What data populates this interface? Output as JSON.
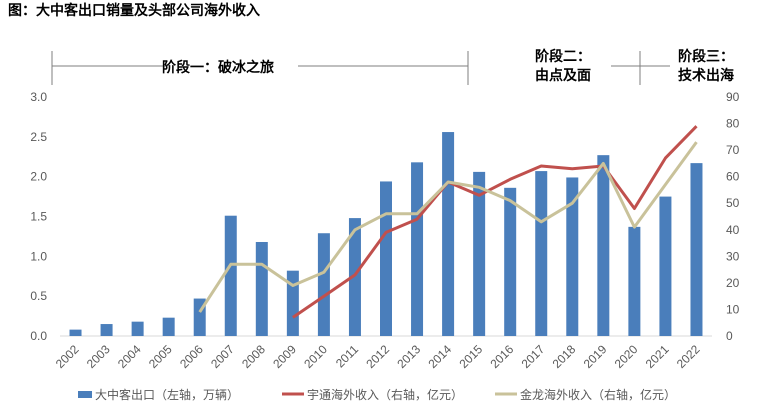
{
  "chart_data": {
    "type": "bar+line",
    "title": "图：大中客出口销量及头部公司海外收入",
    "categories": [
      "2002",
      "2003",
      "2004",
      "2005",
      "2006",
      "2007",
      "2008",
      "2009",
      "2010",
      "2011",
      "2012",
      "2013",
      "2014",
      "2015",
      "2016",
      "2017",
      "2018",
      "2019",
      "2020",
      "2021",
      "2022"
    ],
    "left_axis": {
      "ylim": [
        0,
        3.0
      ],
      "ticks": [
        "0.0",
        "0.5",
        "1.0",
        "1.5",
        "2.0",
        "2.5",
        "3.0"
      ]
    },
    "right_axis": {
      "ylim": [
        0,
        90
      ],
      "ticks": [
        "0",
        "10",
        "20",
        "30",
        "40",
        "50",
        "60",
        "70",
        "80",
        "90"
      ]
    },
    "series": [
      {
        "name": "大中客出口（左轴，万辆）",
        "type": "bar",
        "axis": "left",
        "color": "#4a7ebb",
        "values": [
          0.08,
          0.15,
          0.18,
          0.23,
          0.47,
          1.51,
          1.18,
          0.82,
          1.29,
          1.48,
          1.94,
          2.18,
          2.56,
          2.06,
          1.86,
          2.07,
          1.99,
          2.27,
          1.37,
          1.75,
          2.17
        ]
      },
      {
        "name": "宇通海外收入（右轴，亿元）",
        "type": "line",
        "axis": "right",
        "color": "#c0504d",
        "values": [
          null,
          null,
          null,
          null,
          null,
          null,
          null,
          7,
          15,
          23,
          39,
          44,
          58,
          53,
          59,
          64,
          63,
          64,
          48,
          67,
          79
        ]
      },
      {
        "name": "金龙海外收入（右轴，亿元）",
        "type": "line",
        "axis": "right",
        "color": "#c9c29a",
        "values": [
          null,
          null,
          null,
          null,
          9,
          27,
          27,
          19,
          24,
          40,
          46,
          46,
          58,
          56,
          51,
          43,
          50,
          65,
          41,
          57,
          73
        ]
      }
    ],
    "stages": [
      "阶段一：破冰之旅",
      "阶段二：由点及面",
      "阶段三：技术出海"
    ],
    "legend_position": "bottom",
    "grid": false
  }
}
